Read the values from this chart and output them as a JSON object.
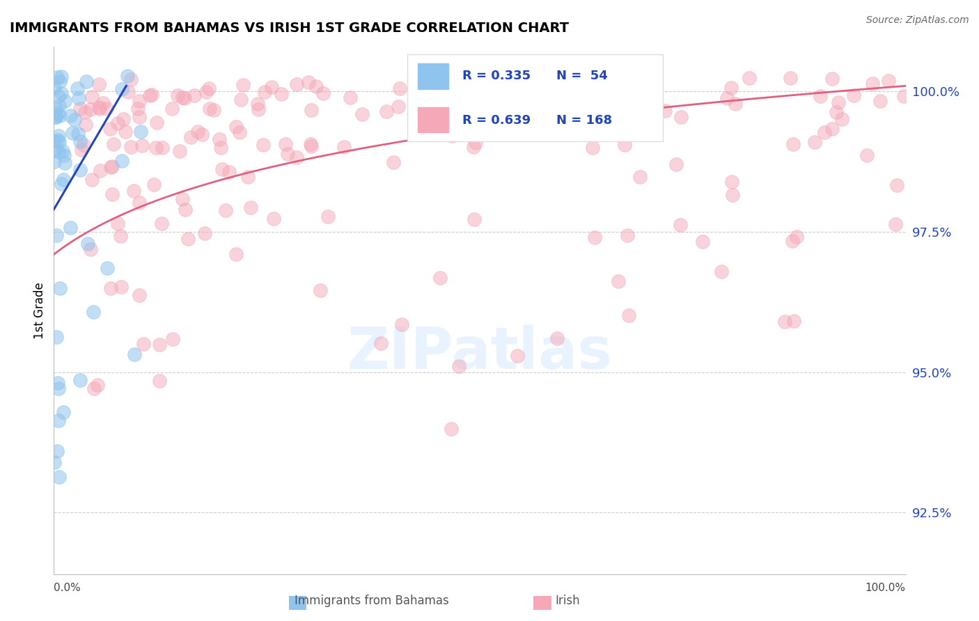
{
  "title": "IMMIGRANTS FROM BAHAMAS VS IRISH 1ST GRADE CORRELATION CHART",
  "source": "Source: ZipAtlas.com",
  "ylabel": "1st Grade",
  "y_tick_labels": [
    "92.5%",
    "95.0%",
    "97.5%",
    "100.0%"
  ],
  "y_tick_values": [
    0.925,
    0.95,
    0.975,
    1.0
  ],
  "x_range": [
    0.0,
    1.0
  ],
  "y_range": [
    0.914,
    1.008
  ],
  "bahamas_color": "#8EC4EE",
  "irish_color": "#F4A8B8",
  "legend_color": "#2244BB",
  "trend_blue_color": "#2244BB",
  "trend_pink_color": "#E06080",
  "watermark_text": "ZIPatlas",
  "background_color": "#ffffff",
  "grid_color": "#CCCCCC",
  "bahamas_R": 0.335,
  "bahamas_N": 54,
  "irish_R": 0.639,
  "irish_N": 168
}
